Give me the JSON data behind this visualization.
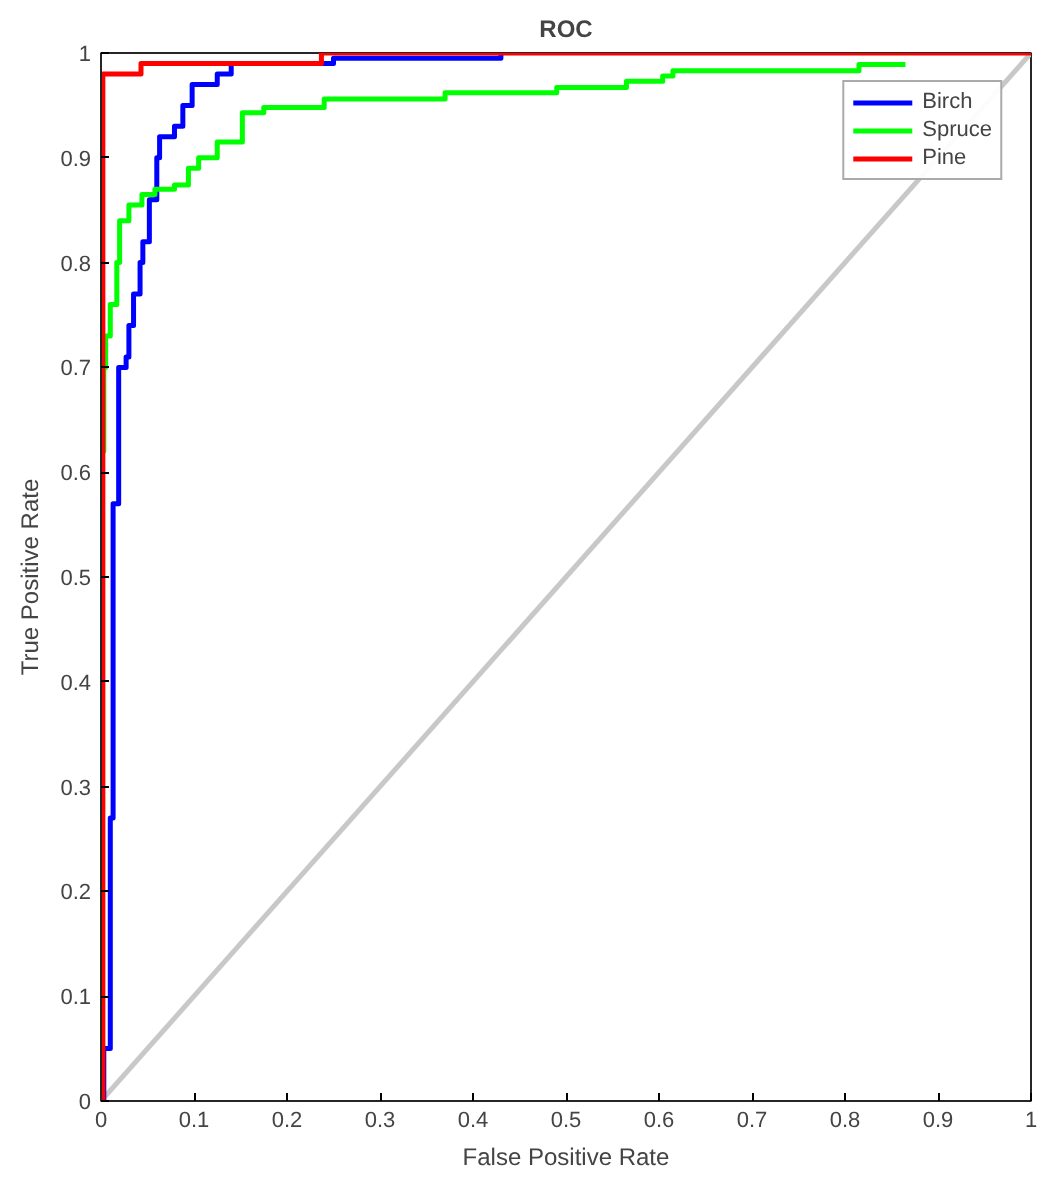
{
  "chart_data": {
    "type": "step",
    "title": "ROC",
    "xlabel": "False Positive Rate",
    "ylabel": "True Positive Rate",
    "xlim": [
      0,
      1
    ],
    "ylim": [
      0,
      1
    ],
    "xticks": [
      0,
      0.1,
      0.2,
      0.3,
      0.4,
      0.5,
      0.6,
      0.7,
      0.8,
      0.9,
      1
    ],
    "yticks": [
      0,
      0.1,
      0.2,
      0.3,
      0.4,
      0.5,
      0.6,
      0.7,
      0.8,
      0.9,
      1
    ],
    "grid": false,
    "legend": "top right",
    "line_style": "solid",
    "marker": "none",
    "series": [
      {
        "type": "line",
        "color": "#c8c8c8",
        "x": [
          0,
          1
        ],
        "values": [
          0,
          1
        ]
      },
      {
        "name": "Birch",
        "color": "#0000ff",
        "x": [
          0,
          0.003,
          0.01,
          0.013,
          0.019,
          0.027,
          0.03,
          0.035,
          0.042,
          0.045,
          0.052,
          0.06,
          0.063,
          0.079,
          0.088,
          0.098,
          0.125,
          0.14,
          0.25,
          0.43
        ],
        "values": [
          0,
          0.05,
          0.27,
          0.57,
          0.7,
          0.71,
          0.74,
          0.77,
          0.8,
          0.82,
          0.86,
          0.9,
          0.92,
          0.93,
          0.95,
          0.97,
          0.98,
          0.99,
          0.995,
          1
        ]
      },
      {
        "name": "Spruce",
        "color": "#00ff00",
        "x": [
          0,
          0.003,
          0.005,
          0.01,
          0.017,
          0.02,
          0.03,
          0.044,
          0.058,
          0.079,
          0.094,
          0.105,
          0.125,
          0.152,
          0.175,
          0.24,
          0.37,
          0.49,
          0.565,
          0.604,
          0.615,
          0.815,
          0.865
        ],
        "values": [
          0.62,
          0.7,
          0.73,
          0.76,
          0.8,
          0.84,
          0.855,
          0.865,
          0.87,
          0.874,
          0.89,
          0.9,
          0.915,
          0.943,
          0.948,
          0.956,
          0.962,
          0.967,
          0.973,
          0.978,
          0.983,
          0.989,
          0.989
        ]
      },
      {
        "name": "Pine",
        "color": "#ff0000",
        "x": [
          0,
          0.002,
          0.043,
          0.237,
          1
        ],
        "values": [
          0,
          0.98,
          0.99,
          1,
          1
        ]
      }
    ]
  }
}
